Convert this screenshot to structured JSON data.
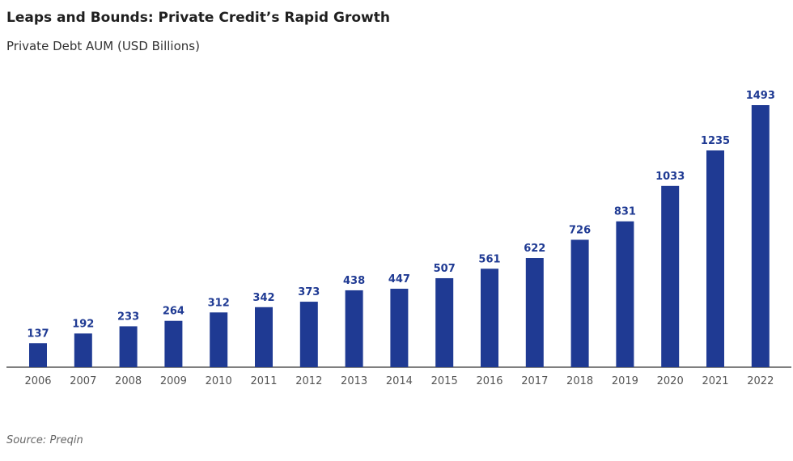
{
  "header": {
    "title": "Leaps and Bounds: Private Credit’s Rapid Growth",
    "subtitle": "Private Debt AUM (USD Billions)"
  },
  "footer": {
    "source": "Source: Preqin"
  },
  "colors": {
    "bar": "#1f3a93",
    "axis": "#555555"
  },
  "chart_data": {
    "type": "bar",
    "categories": [
      "2006",
      "2007",
      "2008",
      "2009",
      "2010",
      "2011",
      "2012",
      "2013",
      "2014",
      "2015",
      "2016",
      "2017",
      "2018",
      "2019",
      "2020",
      "2021",
      "2022"
    ],
    "values": [
      137,
      192,
      233,
      264,
      312,
      342,
      373,
      438,
      447,
      507,
      561,
      622,
      726,
      831,
      1033,
      1235,
      1493
    ],
    "title": "Leaps and Bounds: Private Credit’s Rapid Growth",
    "ylabel": "Private Debt AUM (USD Billions)",
    "ylim": [
      0,
      1493
    ],
    "data_labels": true,
    "grid": false
  }
}
